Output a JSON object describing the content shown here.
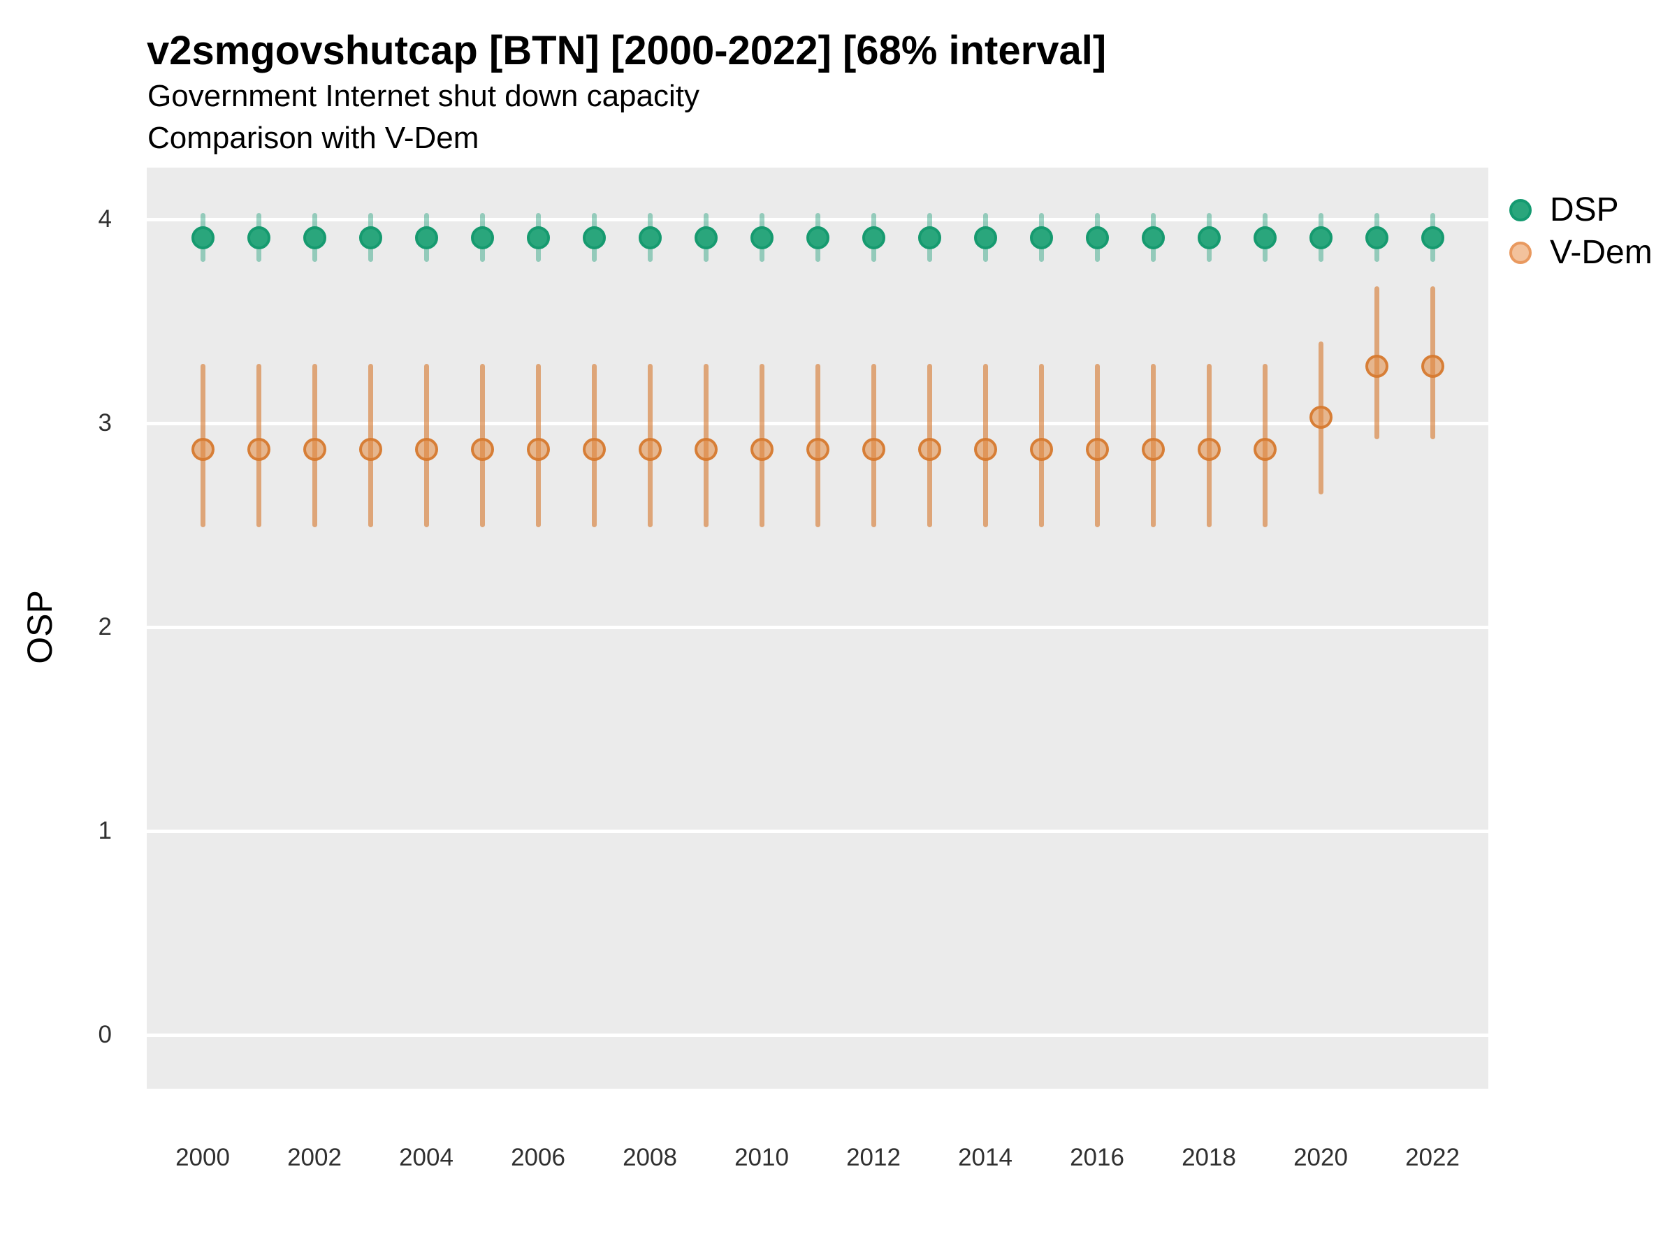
{
  "title": "v2smgovshutcap [BTN] [2000-2022] [68% interval]",
  "subtitle_line1": "Government Internet shut down capacity",
  "subtitle_line2": "Comparison with V-Dem",
  "y_axis": {
    "title": "OSP",
    "ticks": [
      "0",
      "1",
      "2",
      "3",
      "4"
    ],
    "range": [
      -0.26,
      4.25
    ]
  },
  "x_axis": {
    "tick_labels": [
      "2000",
      "2002",
      "2004",
      "2006",
      "2008",
      "2010",
      "2012",
      "2014",
      "2016",
      "2018",
      "2020",
      "2022"
    ]
  },
  "legend": {
    "items": [
      {
        "label": "DSP"
      },
      {
        "label": "V-Dem"
      }
    ]
  },
  "colors": {
    "panel_background": "#ebebeb",
    "gridline": "#ffffff",
    "dsp_point_fill": "#2aa67c",
    "dsp_point_stroke": "#169a6f",
    "dsp_bar": "rgba(27,158,119,0.42)",
    "vdem_point_fill": "rgba(226,139,66,0.55)",
    "vdem_point_stroke": "rgba(214,122,50,0.95)",
    "vdem_bar": "rgba(214,122,50,0.62)",
    "legend_dsp_fill": "#2aa67c",
    "legend_dsp_stroke": "#149a70",
    "legend_vdem_fill": "#f3c29c",
    "legend_vdem_stroke": "#e9995f"
  },
  "chart_data": {
    "type": "pointrange",
    "title": "v2smgovshutcap [BTN] [2000-2022] [68% interval]",
    "xlabel": "",
    "ylabel": "OSP",
    "ylim": [
      -0.26,
      4.25
    ],
    "grid": "white-on-grey",
    "legend_position": "right-top",
    "interval": "68%",
    "x": [
      2000,
      2001,
      2002,
      2003,
      2004,
      2005,
      2006,
      2007,
      2008,
      2009,
      2010,
      2011,
      2012,
      2013,
      2014,
      2015,
      2016,
      2017,
      2018,
      2019,
      2020,
      2021,
      2022
    ],
    "series": [
      {
        "name": "DSP",
        "est": [
          3.91,
          3.91,
          3.91,
          3.91,
          3.91,
          3.91,
          3.91,
          3.91,
          3.91,
          3.91,
          3.91,
          3.91,
          3.91,
          3.91,
          3.91,
          3.91,
          3.91,
          3.91,
          3.91,
          3.91,
          3.91,
          3.91,
          3.91
        ],
        "lo": [
          3.8,
          3.8,
          3.8,
          3.8,
          3.8,
          3.8,
          3.8,
          3.8,
          3.8,
          3.8,
          3.8,
          3.8,
          3.8,
          3.8,
          3.8,
          3.8,
          3.8,
          3.8,
          3.8,
          3.8,
          3.8,
          3.8,
          3.8
        ],
        "hi": [
          4.02,
          4.02,
          4.02,
          4.02,
          4.02,
          4.02,
          4.02,
          4.02,
          4.02,
          4.02,
          4.02,
          4.02,
          4.02,
          4.02,
          4.02,
          4.02,
          4.02,
          4.02,
          4.02,
          4.02,
          4.02,
          4.02,
          4.02
        ]
      },
      {
        "name": "V-Dem",
        "est": [
          2.87,
          2.87,
          2.87,
          2.87,
          2.87,
          2.87,
          2.87,
          2.87,
          2.87,
          2.87,
          2.87,
          2.87,
          2.87,
          2.87,
          2.87,
          2.87,
          2.87,
          2.87,
          2.87,
          2.87,
          3.03,
          3.28,
          3.28
        ],
        "lo": [
          2.5,
          2.5,
          2.5,
          2.5,
          2.5,
          2.5,
          2.5,
          2.5,
          2.5,
          2.5,
          2.5,
          2.5,
          2.5,
          2.5,
          2.5,
          2.5,
          2.5,
          2.5,
          2.5,
          2.5,
          2.66,
          2.93,
          2.93
        ],
        "hi": [
          3.28,
          3.28,
          3.28,
          3.28,
          3.28,
          3.28,
          3.28,
          3.28,
          3.28,
          3.28,
          3.28,
          3.28,
          3.28,
          3.28,
          3.28,
          3.28,
          3.28,
          3.28,
          3.28,
          3.28,
          3.39,
          3.66,
          3.66
        ]
      }
    ]
  }
}
